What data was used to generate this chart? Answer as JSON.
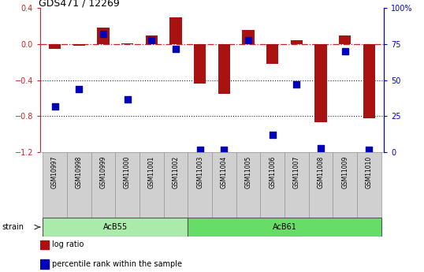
{
  "title": "GDS471 / 12269",
  "samples": [
    "GSM10997",
    "GSM10998",
    "GSM10999",
    "GSM11000",
    "GSM11001",
    "GSM11002",
    "GSM11003",
    "GSM11004",
    "GSM11005",
    "GSM11006",
    "GSM11007",
    "GSM11008",
    "GSM11009",
    "GSM11010"
  ],
  "log_ratio": [
    -0.05,
    -0.02,
    0.18,
    0.01,
    0.1,
    0.3,
    -0.44,
    -0.55,
    0.16,
    -0.22,
    0.04,
    -0.87,
    0.1,
    -0.82
  ],
  "percentile": [
    32,
    44,
    82,
    37,
    78,
    72,
    2,
    2,
    78,
    12,
    47,
    3,
    70,
    2
  ],
  "groups": [
    {
      "label": "AcB55",
      "start": 0,
      "end": 5,
      "color": "#aaeaaa"
    },
    {
      "label": "AcB61",
      "start": 6,
      "end": 13,
      "color": "#66dd66"
    }
  ],
  "bar_color": "#aa1111",
  "dot_color": "#0000bb",
  "ylim_left": [
    -1.2,
    0.4
  ],
  "ylim_right": [
    0,
    100
  ],
  "yticks_left": [
    -1.2,
    -0.8,
    -0.4,
    0.0,
    0.4
  ],
  "yticks_right": [
    0,
    25,
    50,
    75,
    100
  ],
  "hline_color": "#cc2222",
  "dotted_line_color": "#222222",
  "bg_color": "#ffffff",
  "legend_log": "log ratio",
  "legend_pct": "percentile rank within the sample",
  "strain_label": "strain",
  "bar_width": 0.5,
  "dot_size": 28,
  "label_bg": "#d0d0d0",
  "label_edge": "#999999"
}
